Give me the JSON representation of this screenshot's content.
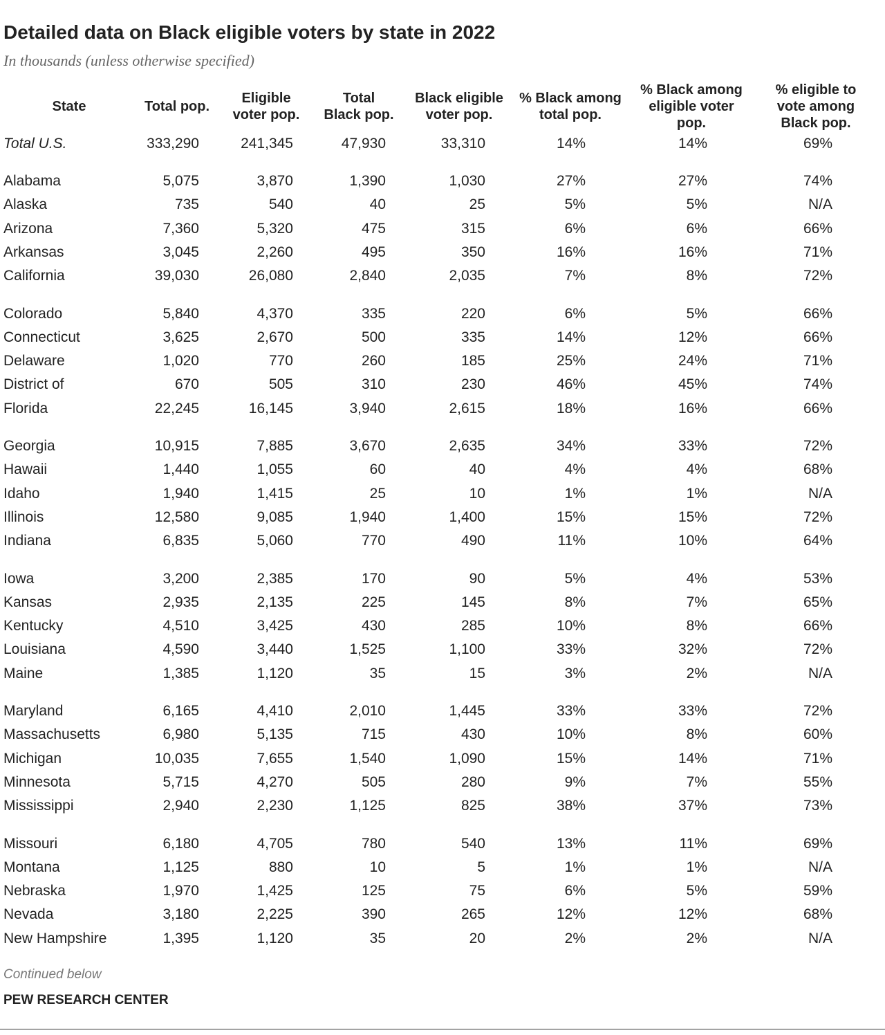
{
  "header": {
    "title": "Detailed data on Black eligible voters by state in 2022",
    "subtitle": "In thousands (unless otherwise specified)"
  },
  "table": {
    "headers": [
      [
        "State"
      ],
      [
        "Total pop."
      ],
      [
        "Eligible",
        "voter pop."
      ],
      [
        "Total",
        "Black pop."
      ],
      [
        "Black eligible",
        "voter pop."
      ],
      [
        "% Black among",
        "total pop."
      ],
      [
        "% Black among",
        "eligible voter",
        "pop."
      ],
      [
        "% eligible to",
        "vote among",
        "Black pop."
      ]
    ],
    "rows": [
      [
        "Total U.S.",
        "333,290",
        "241,345",
        "47,930",
        "33,310",
        "14%",
        "14%",
        "69%"
      ],
      [
        "Alabama",
        "5,075",
        "3,870",
        "1,390",
        "1,030",
        "27%",
        "27%",
        "74%"
      ],
      [
        "Alaska",
        "735",
        "540",
        "40",
        "25",
        "5%",
        "5%",
        "N/A"
      ],
      [
        "Arizona",
        "7,360",
        "5,320",
        "475",
        "315",
        "6%",
        "6%",
        "66%"
      ],
      [
        "Arkansas",
        "3,045",
        "2,260",
        "495",
        "350",
        "16%",
        "16%",
        "71%"
      ],
      [
        "California",
        "39,030",
        "26,080",
        "2,840",
        "2,035",
        "7%",
        "8%",
        "72%"
      ],
      [
        "Colorado",
        "5,840",
        "4,370",
        "335",
        "220",
        "6%",
        "5%",
        "66%"
      ],
      [
        "Connecticut",
        "3,625",
        "2,670",
        "500",
        "335",
        "14%",
        "12%",
        "66%"
      ],
      [
        "Delaware",
        "1,020",
        "770",
        "260",
        "185",
        "25%",
        "24%",
        "71%"
      ],
      [
        "District of",
        "670",
        "505",
        "310",
        "230",
        "46%",
        "45%",
        "74%"
      ],
      [
        "Florida",
        "22,245",
        "16,145",
        "3,940",
        "2,615",
        "18%",
        "16%",
        "66%"
      ],
      [
        "Georgia",
        "10,915",
        "7,885",
        "3,670",
        "2,635",
        "34%",
        "33%",
        "72%"
      ],
      [
        "Hawaii",
        "1,440",
        "1,055",
        "60",
        "40",
        "4%",
        "4%",
        "68%"
      ],
      [
        "Idaho",
        "1,940",
        "1,415",
        "25",
        "10",
        "1%",
        "1%",
        "N/A"
      ],
      [
        "Illinois",
        "12,580",
        "9,085",
        "1,940",
        "1,400",
        "15%",
        "15%",
        "72%"
      ],
      [
        "Indiana",
        "6,835",
        "5,060",
        "770",
        "490",
        "11%",
        "10%",
        "64%"
      ],
      [
        "Iowa",
        "3,200",
        "2,385",
        "170",
        "90",
        "5%",
        "4%",
        "53%"
      ],
      [
        "Kansas",
        "2,935",
        "2,135",
        "225",
        "145",
        "8%",
        "7%",
        "65%"
      ],
      [
        "Kentucky",
        "4,510",
        "3,425",
        "430",
        "285",
        "10%",
        "8%",
        "66%"
      ],
      [
        "Louisiana",
        "4,590",
        "3,440",
        "1,525",
        "1,100",
        "33%",
        "32%",
        "72%"
      ],
      [
        "Maine",
        "1,385",
        "1,120",
        "35",
        "15",
        "3%",
        "2%",
        "N/A"
      ],
      [
        "Maryland",
        "6,165",
        "4,410",
        "2,010",
        "1,445",
        "33%",
        "33%",
        "72%"
      ],
      [
        "Massachusetts",
        "6,980",
        "5,135",
        "715",
        "430",
        "10%",
        "8%",
        "60%"
      ],
      [
        "Michigan",
        "10,035",
        "7,655",
        "1,540",
        "1,090",
        "15%",
        "14%",
        "71%"
      ],
      [
        "Minnesota",
        "5,715",
        "4,270",
        "505",
        "280",
        "9%",
        "7%",
        "55%"
      ],
      [
        "Mississippi",
        "2,940",
        "2,230",
        "1,125",
        "825",
        "38%",
        "37%",
        "73%"
      ],
      [
        "Missouri",
        "6,180",
        "4,705",
        "780",
        "540",
        "13%",
        "11%",
        "69%"
      ],
      [
        "Montana",
        "1,125",
        "880",
        "10",
        "5",
        "1%",
        "1%",
        "N/A"
      ],
      [
        "Nebraska",
        "1,970",
        "1,425",
        "125",
        "75",
        "6%",
        "5%",
        "59%"
      ],
      [
        "Nevada",
        "3,180",
        "2,225",
        "390",
        "265",
        "12%",
        "12%",
        "68%"
      ],
      [
        "New Hampshire",
        "1,395",
        "1,120",
        "35",
        "20",
        "2%",
        "2%",
        "N/A"
      ]
    ]
  },
  "footer": {
    "note": "Continued below",
    "source": "PEW RESEARCH CENTER"
  }
}
